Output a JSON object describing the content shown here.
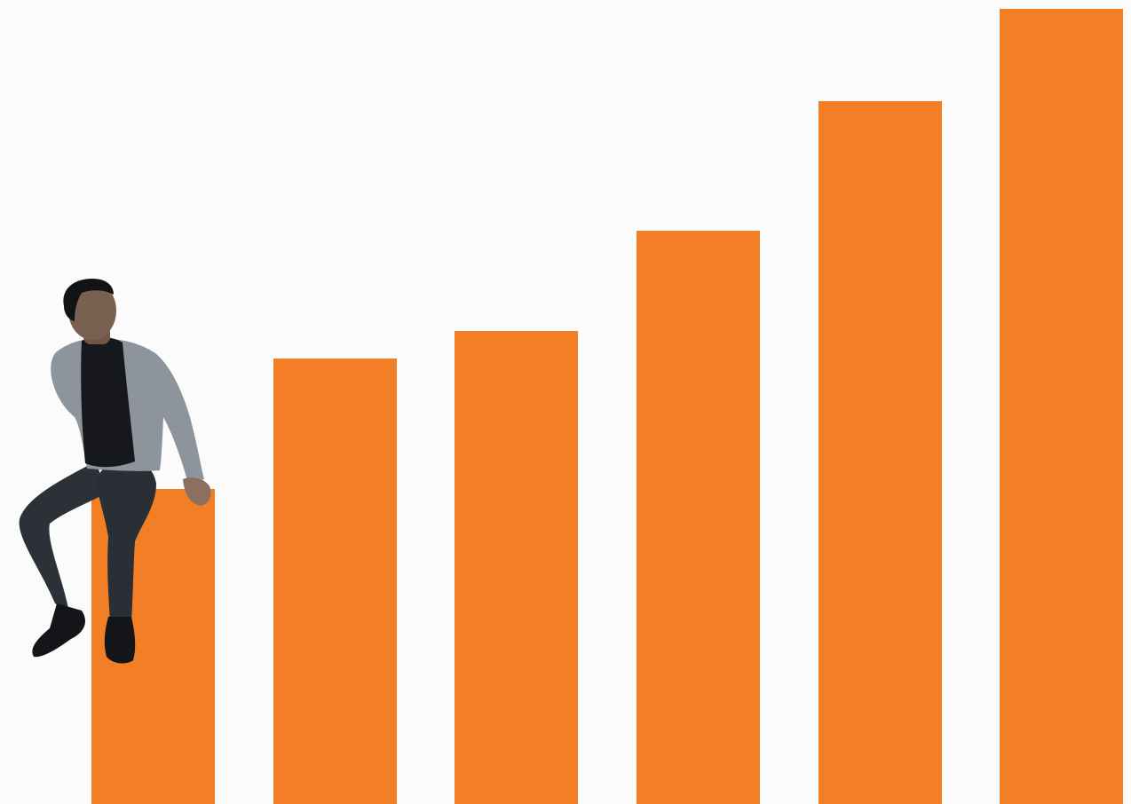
{
  "chart_data": {
    "type": "bar",
    "categories": [
      "",
      "",
      "",
      "",
      "",
      ""
    ],
    "values": [
      355,
      502,
      533,
      646,
      792,
      896
    ],
    "ylim": [
      0,
      906
    ],
    "bar_color": "#f27f25",
    "background_color": "#fbfbfc",
    "title": "",
    "xlabel": "",
    "ylabel": "",
    "grid": false,
    "legend": "none",
    "axes_visible": false
  },
  "illustration": {
    "subject": "man-sitting-on-first-bar",
    "icon": "person-illustration"
  }
}
